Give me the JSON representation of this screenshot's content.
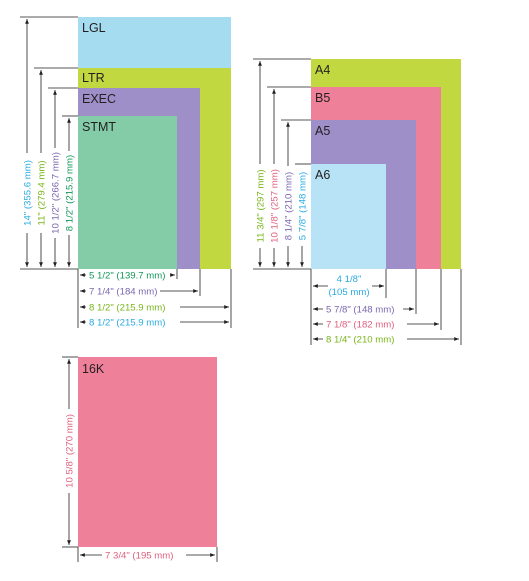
{
  "colors": {
    "lgl": "#a6dcf0",
    "ltr": "#c1d840",
    "exec": "#9e8fc8",
    "stmt": "#84cba8",
    "a4": "#c1d840",
    "b5": "#ee8099",
    "a5": "#9e8fc8",
    "a6": "#b8e2f5",
    "k16": "#ee8099",
    "dim_lgl": "#29abe2",
    "dim_ltr": "#7ab51d",
    "dim_exec": "#7b68b0",
    "dim_stmt": "#129859",
    "dim_a4": "#7ab51d",
    "dim_b5": "#e0607e",
    "dim_a5": "#7b68b0",
    "dim_a6": "#29abe2",
    "dim_16k": "#e0607e",
    "line": "#231f20"
  },
  "us_group": {
    "labels": {
      "lgl": "LGL",
      "ltr": "LTR",
      "exec": "EXEC",
      "stmt": "STMT"
    },
    "heights": {
      "lgl": "14\" (355.6 mm)",
      "ltr": "11\" (279.4 mm)",
      "exec": "10 1/2\" (266.7 mm)",
      "stmt": "8 1/2\" (215.9 mm)"
    },
    "widths": {
      "stmt": "5 1/2\" (139.7 mm)",
      "exec": "7 1/4\" (184 mm)",
      "ltr": "8 1/2\" (215.9 mm)",
      "lgl": "8 1/2\" (215.9 mm)"
    }
  },
  "iso_group": {
    "labels": {
      "a4": "A4",
      "b5": "B5",
      "a5": "A5",
      "a6": "A6"
    },
    "heights": {
      "a4": "11 3/4\" (297 mm)",
      "b5": "10 1/8\" (257 mm)",
      "a5": "8 1/4\" (210 mm)",
      "a6": "5 7/8\" (148 mm)"
    },
    "widths": {
      "a6_line1": "4 1/8\"",
      "a6_line2": "(105 mm)",
      "a5": "5 7/8\" (148 mm)",
      "b5": "7 1/8\" (182 mm)",
      "a4": "8 1/4\" (210 mm)"
    }
  },
  "k16_group": {
    "label": "16K",
    "height": "10 5/8\" (270 mm)",
    "width": "7 3/4\" (195 mm)"
  }
}
